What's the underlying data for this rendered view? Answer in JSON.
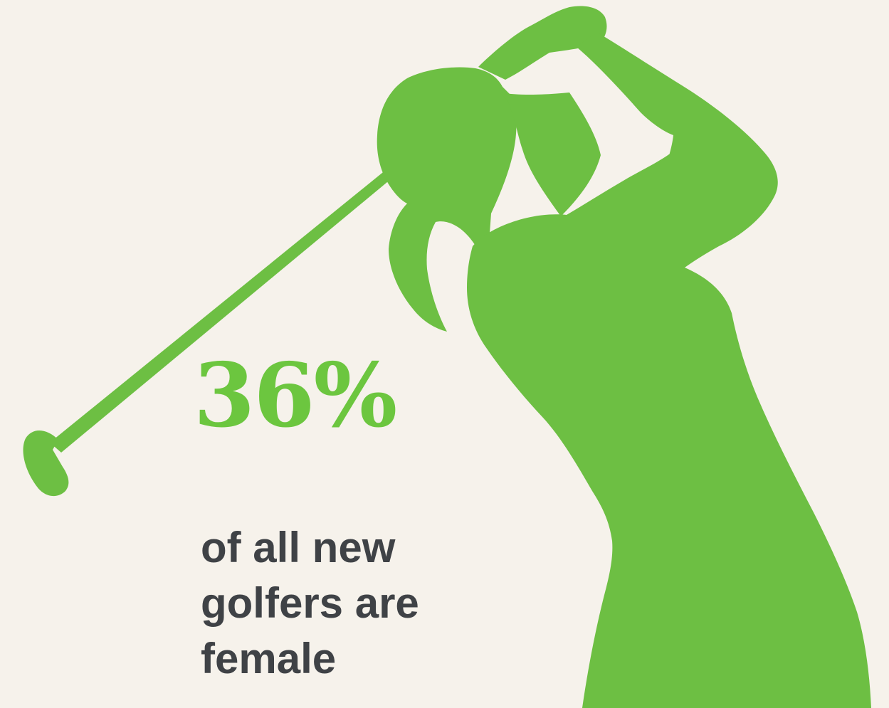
{
  "colors": {
    "background": "#f6f2eb",
    "accent": "#6dbf43",
    "stat_text": "#6cc63f",
    "body_text": "#3f4246"
  },
  "illustration": {
    "icon": "female-golfer-silhouette-icon"
  },
  "stat": {
    "value": "36%"
  },
  "caption": {
    "lines": [
      "of all new",
      "golfers are",
      "female"
    ]
  }
}
